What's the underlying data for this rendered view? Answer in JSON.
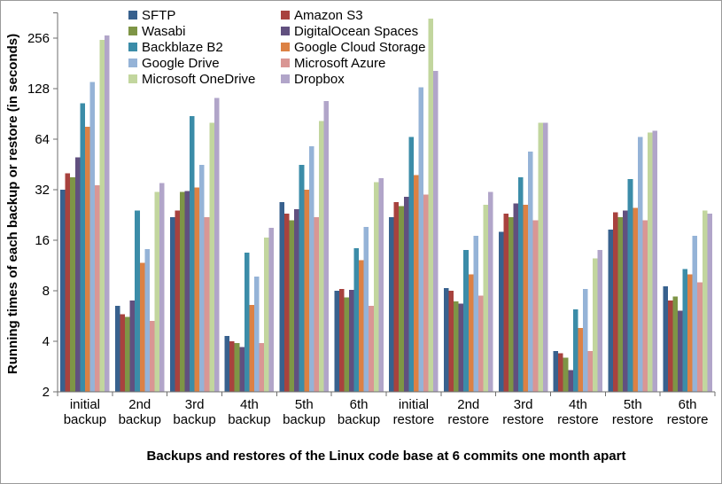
{
  "chart_data": {
    "type": "bar",
    "title": "",
    "xlabel": "Backups and restores of the Linux code base at 6 commits one month apart",
    "ylabel": "Running times of each backup or restore (in seconds)",
    "y_scale": "log2",
    "grid": false,
    "legend_position": "top-inside, two columns",
    "y_ticks": [
      2,
      4,
      8,
      16,
      32,
      64,
      128,
      256
    ],
    "ylim": [
      2,
      362
    ],
    "categories": [
      "initial backup",
      "2nd backup",
      "3rd backup",
      "4th backup",
      "5th backup",
      "6th backup",
      "initial restore",
      "2nd restore",
      "3rd restore",
      "4th restore",
      "5th restore",
      "6th restore"
    ],
    "legend_column_order": [
      [
        0,
        2,
        4,
        6,
        8
      ],
      [
        1,
        3,
        5,
        7,
        9
      ]
    ],
    "series": [
      {
        "name": "SFTP",
        "color": "#38618E",
        "values": [
          32,
          6.5,
          22,
          4.3,
          27,
          8.0,
          22,
          8.3,
          18,
          3.5,
          18.5,
          8.5
        ]
      },
      {
        "name": "Amazon S3",
        "color": "#A8423E",
        "values": [
          40,
          5.8,
          24,
          4.0,
          23,
          8.2,
          27,
          8.0,
          23,
          3.4,
          23.5,
          7.0
        ]
      },
      {
        "name": "Wasabi",
        "color": "#7E9546",
        "values": [
          38,
          5.6,
          31,
          3.9,
          21,
          7.3,
          25.5,
          6.9,
          22,
          3.2,
          22,
          7.4
        ]
      },
      {
        "name": "DigitalOcean Spaces",
        "color": "#61507F",
        "values": [
          50,
          7.0,
          31.5,
          3.7,
          24.5,
          8.1,
          29,
          6.7,
          26.5,
          2.7,
          24,
          6.1
        ]
      },
      {
        "name": "Backblaze B2",
        "color": "#3B8CA8",
        "values": [
          105,
          24,
          88,
          13.5,
          45,
          14.3,
          66,
          14,
          38,
          6.2,
          37,
          10.8
        ]
      },
      {
        "name": "Google Cloud Storage",
        "color": "#DC8144",
        "values": [
          76,
          11.7,
          33,
          6.6,
          32,
          12.2,
          39,
          10,
          26,
          4.8,
          25,
          10
        ]
      },
      {
        "name": "Google Drive",
        "color": "#95B3D7",
        "values": [
          140,
          14.2,
          45,
          9.7,
          58,
          19.2,
          130,
          17,
          54,
          8.2,
          66,
          17
        ]
      },
      {
        "name": "Microsoft Azure",
        "color": "#D99694",
        "values": [
          34,
          5.3,
          22,
          3.9,
          22,
          6.5,
          30,
          7.5,
          21,
          3.5,
          21,
          9.0
        ]
      },
      {
        "name": "Microsoft OneDrive",
        "color": "#C2D69E",
        "values": [
          250,
          31,
          80,
          16.6,
          82,
          35.5,
          335,
          26,
          80,
          12.5,
          70,
          24
        ]
      },
      {
        "name": "Dropbox",
        "color": "#B1A5C9",
        "values": [
          265,
          35,
          113,
          19,
          108,
          37.5,
          163,
          31,
          80,
          14,
          72,
          23
        ]
      }
    ]
  }
}
